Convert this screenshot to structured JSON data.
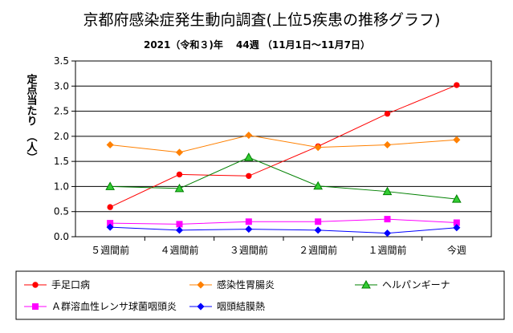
{
  "chart_data": {
    "type": "line",
    "title": "京都府感染症発生動向調査(上位5疾患の推移グラフ)",
    "subtitle": "2021（令和３)年　 44週 （11月1日～11月7日）",
    "ylabel": "定点当たり　（人）",
    "xlabel": "",
    "categories": [
      "５週間前",
      "４週間前",
      "３週間前",
      "２週間前",
      "１週間前",
      "今週"
    ],
    "yticks": [
      "0.0",
      "0.5",
      "1.0",
      "1.5",
      "2.0",
      "2.5",
      "3.0",
      "3.5"
    ],
    "ylim": [
      0,
      3.5
    ],
    "grid": true,
    "legend_position": "bottom",
    "series": [
      {
        "name": "手足口病",
        "values": [
          0.59,
          1.24,
          1.21,
          1.8,
          2.45,
          3.02
        ],
        "color": "#ff0000",
        "marker": "circle"
      },
      {
        "name": "感染性胃腸炎",
        "values": [
          1.83,
          1.68,
          2.02,
          1.78,
          1.83,
          1.93
        ],
        "color": "#ff8000",
        "marker": "diamond"
      },
      {
        "name": "ヘルパンギーナ",
        "values": [
          1.0,
          0.96,
          1.58,
          1.01,
          0.9,
          0.75
        ],
        "color": "#008000",
        "marker": "triangle"
      },
      {
        "name": "Ａ群溶血性レンサ球菌咽頭炎",
        "values": [
          0.27,
          0.25,
          0.3,
          0.3,
          0.35,
          0.28
        ],
        "color": "#ff00ff",
        "marker": "square"
      },
      {
        "name": "咽頭結膜熱",
        "values": [
          0.19,
          0.13,
          0.15,
          0.13,
          0.07,
          0.18
        ],
        "color": "#0000ff",
        "marker": "diamond"
      }
    ]
  }
}
